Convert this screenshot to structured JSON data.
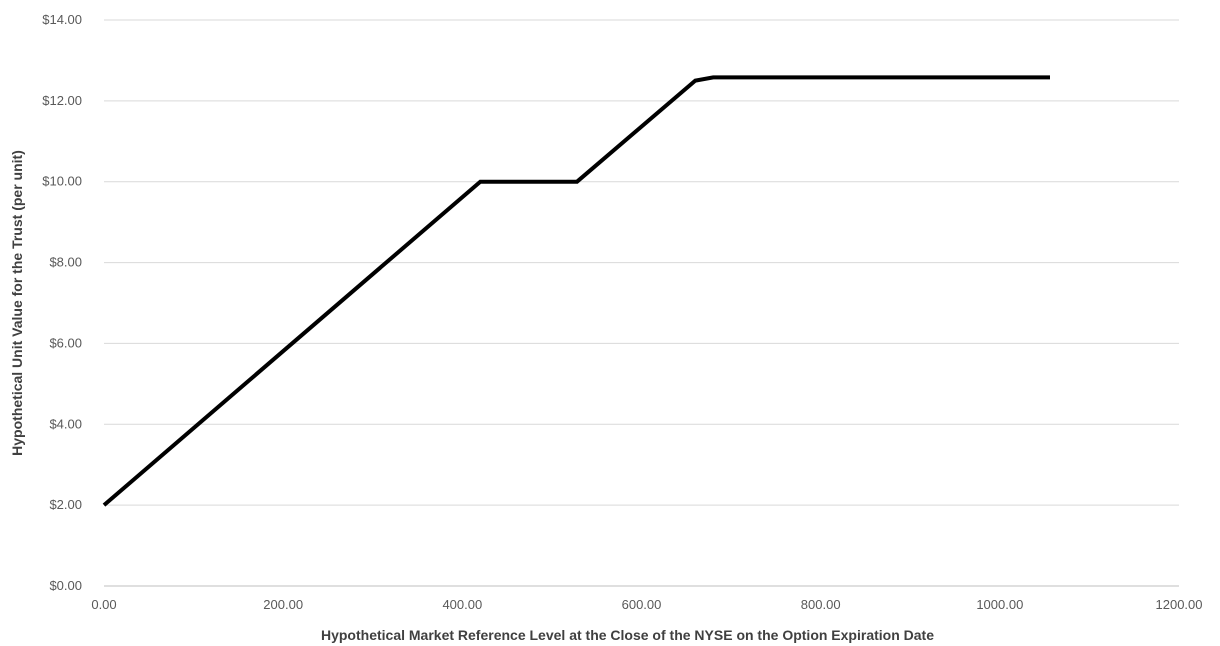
{
  "chart_data": {
    "type": "line",
    "xlabel": "Hypothetical Market Reference Level at the Close of the NYSE on the Option Expiration Date",
    "ylabel": "Hypothetical Unit Value for the Trust (per unit)",
    "xlim": [
      0,
      1200
    ],
    "ylim": [
      0,
      14
    ],
    "x_ticks": [
      0,
      200,
      400,
      600,
      800,
      1000,
      1200
    ],
    "x_tick_labels": [
      "0.00",
      "200.00",
      "400.00",
      "600.00",
      "800.00",
      "1000.00",
      "1200.00"
    ],
    "y_ticks": [
      0,
      2,
      4,
      6,
      8,
      10,
      12,
      14
    ],
    "y_tick_labels": [
      "$0.00",
      "$2.00",
      "$4.00",
      "$6.00",
      "$8.00",
      "$10.00",
      "$12.00",
      "$14.00"
    ],
    "grid": "horizontal",
    "legend": "none",
    "series": [
      {
        "color": "#000000",
        "x": [
          0,
          420,
          528,
          660,
          680,
          1056
        ],
        "y": [
          2.0,
          10.0,
          10.0,
          12.5,
          12.58,
          12.58
        ]
      }
    ]
  }
}
